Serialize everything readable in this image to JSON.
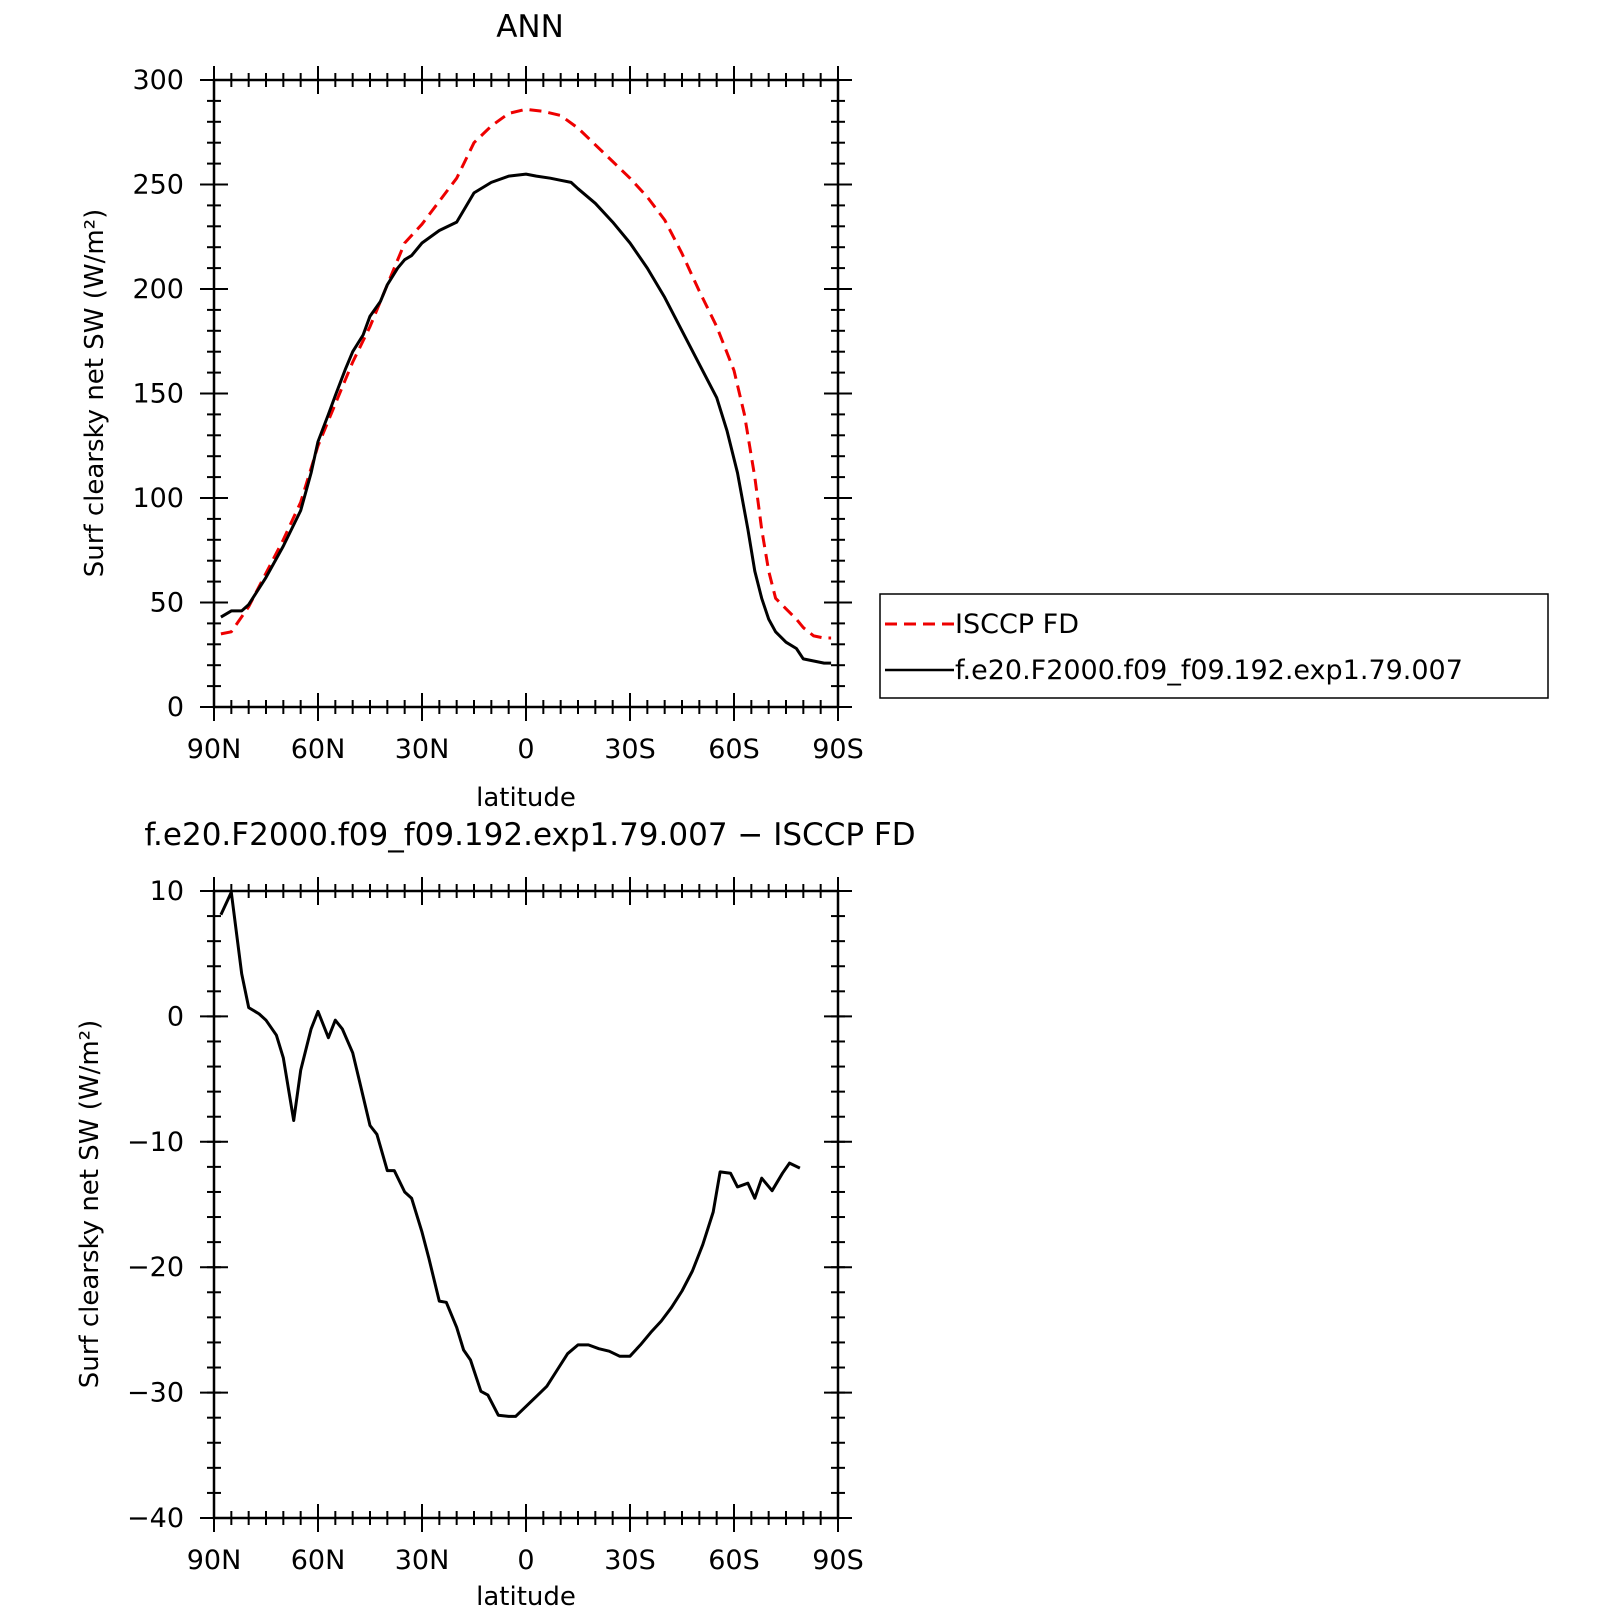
{
  "chart_data": [
    {
      "type": "line",
      "title": "ANN",
      "xlabel": "latitude",
      "ylabel": "Surf clearsky net SW (W/m²)",
      "xlim": [
        90,
        -90
      ],
      "ylim": [
        0,
        300
      ],
      "x_ticks": [
        {
          "value": 90,
          "label": "90N"
        },
        {
          "value": 60,
          "label": "60N"
        },
        {
          "value": 30,
          "label": "30N"
        },
        {
          "value": 0,
          "label": "0"
        },
        {
          "value": -30,
          "label": "30S"
        },
        {
          "value": -60,
          "label": "60S"
        },
        {
          "value": -90,
          "label": "90S"
        }
      ],
      "y_ticks": [
        {
          "value": 0,
          "label": "0"
        },
        {
          "value": 50,
          "label": "50"
        },
        {
          "value": 100,
          "label": "100"
        },
        {
          "value": 150,
          "label": "150"
        },
        {
          "value": 200,
          "label": "200"
        },
        {
          "value": 250,
          "label": "250"
        },
        {
          "value": 300,
          "label": "300"
        }
      ],
      "grid": false,
      "legend": "right",
      "series": [
        {
          "name": "ISCCP FD",
          "color": "#ee0000",
          "dash": true,
          "points": [
            [
              88,
              35
            ],
            [
              85,
              36
            ],
            [
              80,
              48
            ],
            [
              75,
              64
            ],
            [
              70,
              80
            ],
            [
              65,
              98
            ],
            [
              60,
              125
            ],
            [
              55,
              145
            ],
            [
              50,
              165
            ],
            [
              45,
              182
            ],
            [
              40,
              202
            ],
            [
              35,
              222
            ],
            [
              30,
              231
            ],
            [
              25,
              242
            ],
            [
              20,
              253
            ],
            [
              15,
              270
            ],
            [
              10,
              278
            ],
            [
              5,
              284
            ],
            [
              0,
              286
            ],
            [
              -5,
              285
            ],
            [
              -10,
              283
            ],
            [
              -15,
              277
            ],
            [
              -20,
              269
            ],
            [
              -25,
              261
            ],
            [
              -30,
              253
            ],
            [
              -35,
              244
            ],
            [
              -40,
              233
            ],
            [
              -45,
              217
            ],
            [
              -50,
              199
            ],
            [
              -55,
              182
            ],
            [
              -60,
              161
            ],
            [
              -63,
              140
            ],
            [
              -66,
              110
            ],
            [
              -68,
              85
            ],
            [
              -70,
              65
            ],
            [
              -72,
              52
            ],
            [
              -75,
              47
            ],
            [
              -78,
              42
            ],
            [
              -80,
              38
            ],
            [
              -83,
              34
            ],
            [
              -86,
              33
            ],
            [
              -88,
              33
            ]
          ]
        },
        {
          "name": "f.e20.F2000.f09_f09.192.exp1.79.007",
          "color": "#000000",
          "dash": false,
          "points": [
            [
              88,
              43
            ],
            [
              85,
              46
            ],
            [
              82,
              46
            ],
            [
              80,
              49
            ],
            [
              75,
              62
            ],
            [
              70,
              77
            ],
            [
              65,
              94
            ],
            [
              62,
              112
            ],
            [
              60,
              127
            ],
            [
              57,
              140
            ],
            [
              55,
              149
            ],
            [
              52,
              162
            ],
            [
              50,
              170
            ],
            [
              47,
              178
            ],
            [
              45,
              187
            ],
            [
              42,
              194
            ],
            [
              40,
              202
            ],
            [
              37,
              210
            ],
            [
              35,
              214
            ],
            [
              33,
              216
            ],
            [
              30,
              222
            ],
            [
              25,
              228
            ],
            [
              20,
              232
            ],
            [
              15,
              246
            ],
            [
              10,
              251
            ],
            [
              5,
              254
            ],
            [
              0,
              255
            ],
            [
              -3,
              254
            ],
            [
              -7,
              253
            ],
            [
              -10,
              252
            ],
            [
              -13,
              251
            ],
            [
              -15,
              248
            ],
            [
              -20,
              241
            ],
            [
              -25,
              232
            ],
            [
              -30,
              222
            ],
            [
              -35,
              210
            ],
            [
              -40,
              196
            ],
            [
              -45,
              180
            ],
            [
              -50,
              164
            ],
            [
              -55,
              148
            ],
            [
              -58,
              132
            ],
            [
              -61,
              112
            ],
            [
              -64,
              85
            ],
            [
              -66,
              65
            ],
            [
              -68,
              52
            ],
            [
              -70,
              42
            ],
            [
              -72,
              36
            ],
            [
              -75,
              31
            ],
            [
              -78,
              28
            ],
            [
              -80,
              23
            ],
            [
              -83,
              22
            ],
            [
              -86,
              21
            ],
            [
              -88,
              21
            ]
          ]
        }
      ]
    },
    {
      "type": "line",
      "title": "f.e20.F2000.f09_f09.192.exp1.79.007 − ISCCP FD",
      "xlabel": "latitude",
      "ylabel": "Surf clearsky net SW (W/m²)",
      "xlim": [
        90,
        -90
      ],
      "ylim": [
        -40,
        10
      ],
      "x_ticks": [
        {
          "value": 90,
          "label": "90N"
        },
        {
          "value": 60,
          "label": "60N"
        },
        {
          "value": 30,
          "label": "30N"
        },
        {
          "value": 0,
          "label": "0"
        },
        {
          "value": -30,
          "label": "30S"
        },
        {
          "value": -60,
          "label": "60S"
        },
        {
          "value": -90,
          "label": "90S"
        }
      ],
      "y_ticks": [
        {
          "value": 10,
          "label": "10"
        },
        {
          "value": 0,
          "label": "0"
        },
        {
          "value": -10,
          "label": "−10"
        },
        {
          "value": -20,
          "label": "−20"
        },
        {
          "value": -30,
          "label": "−30"
        },
        {
          "value": -40,
          "label": "−40"
        }
      ],
      "grid": false,
      "series": [
        {
          "color": "#000000",
          "points": [
            [
              88,
              8.1
            ],
            [
              85,
              9.9
            ],
            [
              82,
              3.4
            ],
            [
              80,
              0.7
            ],
            [
              77,
              0.2
            ],
            [
              75,
              -0.3
            ],
            [
              72,
              -1.5
            ],
            [
              70,
              -3.3
            ],
            [
              67,
              -8.3
            ],
            [
              65,
              -4.3
            ],
            [
              62,
              -1
            ],
            [
              60,
              0.4
            ],
            [
              57,
              -1.7
            ],
            [
              55,
              -0.3
            ],
            [
              53,
              -1
            ],
            [
              50,
              -2.9
            ],
            [
              48,
              -5.2
            ],
            [
              45,
              -8.7
            ],
            [
              43,
              -9.4
            ],
            [
              40,
              -12.3
            ],
            [
              38,
              -12.3
            ],
            [
              35,
              -14
            ],
            [
              33,
              -14.5
            ],
            [
              30,
              -17.2
            ],
            [
              28,
              -19.3
            ],
            [
              25,
              -22.7
            ],
            [
              23,
              -22.8
            ],
            [
              20,
              -24.8
            ],
            [
              18,
              -26.6
            ],
            [
              16,
              -27.4
            ],
            [
              13,
              -29.9
            ],
            [
              11,
              -30.2
            ],
            [
              8,
              -31.8
            ],
            [
              5,
              -31.9
            ],
            [
              3,
              -31.9
            ],
            [
              0,
              -31.1
            ],
            [
              -3,
              -30.3
            ],
            [
              -6,
              -29.5
            ],
            [
              -9,
              -28.2
            ],
            [
              -12,
              -26.9
            ],
            [
              -15,
              -26.2
            ],
            [
              -18,
              -26.2
            ],
            [
              -21,
              -26.5
            ],
            [
              -24,
              -26.7
            ],
            [
              -27,
              -27.1
            ],
            [
              -30,
              -27.1
            ],
            [
              -33,
              -26.2
            ],
            [
              -36,
              -25.2
            ],
            [
              -39,
              -24.3
            ],
            [
              -42,
              -23.2
            ],
            [
              -45,
              -21.9
            ],
            [
              -48,
              -20.3
            ],
            [
              -51,
              -18.2
            ],
            [
              -54,
              -15.6
            ],
            [
              -56,
              -12.4
            ],
            [
              -59,
              -12.5
            ],
            [
              -61,
              -13.6
            ],
            [
              -64,
              -13.3
            ],
            [
              -66,
              -14.5
            ],
            [
              -68,
              -12.9
            ],
            [
              -71,
              -13.9
            ],
            [
              -74,
              -12.5
            ],
            [
              -76,
              -11.7
            ],
            [
              -79,
              -12.1
            ]
          ]
        }
      ]
    }
  ]
}
